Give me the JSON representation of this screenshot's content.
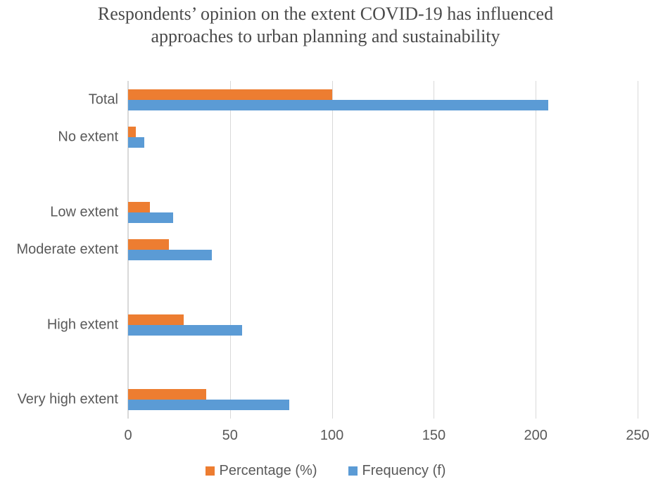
{
  "title": "Respondents’ opinion on the extent COVID-19 has influenced approaches to urban planning and sustainability",
  "chart_data": {
    "type": "bar",
    "orientation": "horizontal",
    "title": "Respondents’ opinion on the extent COVID-19 has influenced approaches to urban planning and sustainability",
    "categories": [
      "Total",
      "No extent",
      "Low extent",
      "Moderate extent",
      "High extent",
      "Very high extent"
    ],
    "series": [
      {
        "name": "Percentage (%)",
        "color": "#ED7D31",
        "values": [
          100,
          3.9,
          10.7,
          19.9,
          27.2,
          38.3
        ]
      },
      {
        "name": "Frequency (f)",
        "color": "#5B9BD5",
        "values": [
          206,
          8,
          22,
          41,
          56,
          79
        ]
      }
    ],
    "xlabel": "",
    "ylabel": "",
    "xlim": [
      0,
      250
    ],
    "xticks": [
      0,
      50,
      100,
      150,
      200,
      250
    ],
    "grid": "vertical-only",
    "legend_position": "bottom",
    "colors": {
      "percentage_bar": "#ED7D31",
      "frequency_bar": "#5B9BD5",
      "gridline": "#D9D9D9",
      "label_text": "#595959",
      "title_text": "#4A4A4A"
    },
    "layout": {
      "row_slots": [
        0,
        1,
        3,
        4,
        6,
        8
      ],
      "total_slots": 9
    }
  }
}
